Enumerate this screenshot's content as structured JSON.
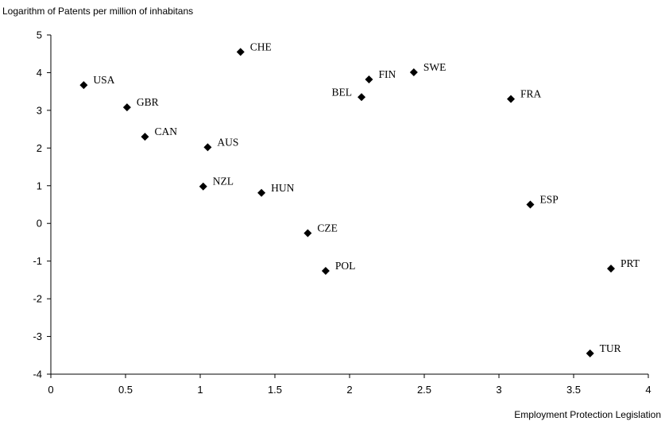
{
  "chart_data": {
    "type": "scatter",
    "ylabel": "Logarithm of Patents per million of inhabitans",
    "xlabel": "Employment Protection Legislation",
    "xlim": [
      0,
      4
    ],
    "ylim": [
      -4,
      5
    ],
    "x_ticks": [
      "0",
      "0.5",
      "1",
      "1.5",
      "2",
      "2.5",
      "3",
      "3.5",
      "4"
    ],
    "y_ticks": [
      "5",
      "4",
      "3",
      "2",
      "1",
      "0",
      "-1",
      "-2",
      "-3",
      "-4"
    ],
    "grid": false,
    "marker": "diamond",
    "points": [
      {
        "label": "USA",
        "x": 0.22,
        "y": 3.67
      },
      {
        "label": "GBR",
        "x": 0.51,
        "y": 3.08
      },
      {
        "label": "CAN",
        "x": 0.63,
        "y": 2.3
      },
      {
        "label": "AUS",
        "x": 1.05,
        "y": 2.02
      },
      {
        "label": "CHE",
        "x": 1.27,
        "y": 4.55
      },
      {
        "label": "NZL",
        "x": 1.02,
        "y": 0.98
      },
      {
        "label": "HUN",
        "x": 1.41,
        "y": 0.81
      },
      {
        "label": "CZE",
        "x": 1.72,
        "y": -0.26
      },
      {
        "label": "POL",
        "x": 1.84,
        "y": -1.26
      },
      {
        "label": "BEL",
        "x": 2.08,
        "y": 3.35
      },
      {
        "label": "FIN",
        "x": 2.13,
        "y": 3.82
      },
      {
        "label": "SWE",
        "x": 2.43,
        "y": 4.01
      },
      {
        "label": "FRA",
        "x": 3.08,
        "y": 3.3
      },
      {
        "label": "ESP",
        "x": 3.21,
        "y": 0.5
      },
      {
        "label": "PRT",
        "x": 3.75,
        "y": -1.2
      },
      {
        "label": "TUR",
        "x": 3.61,
        "y": -3.45
      }
    ]
  }
}
